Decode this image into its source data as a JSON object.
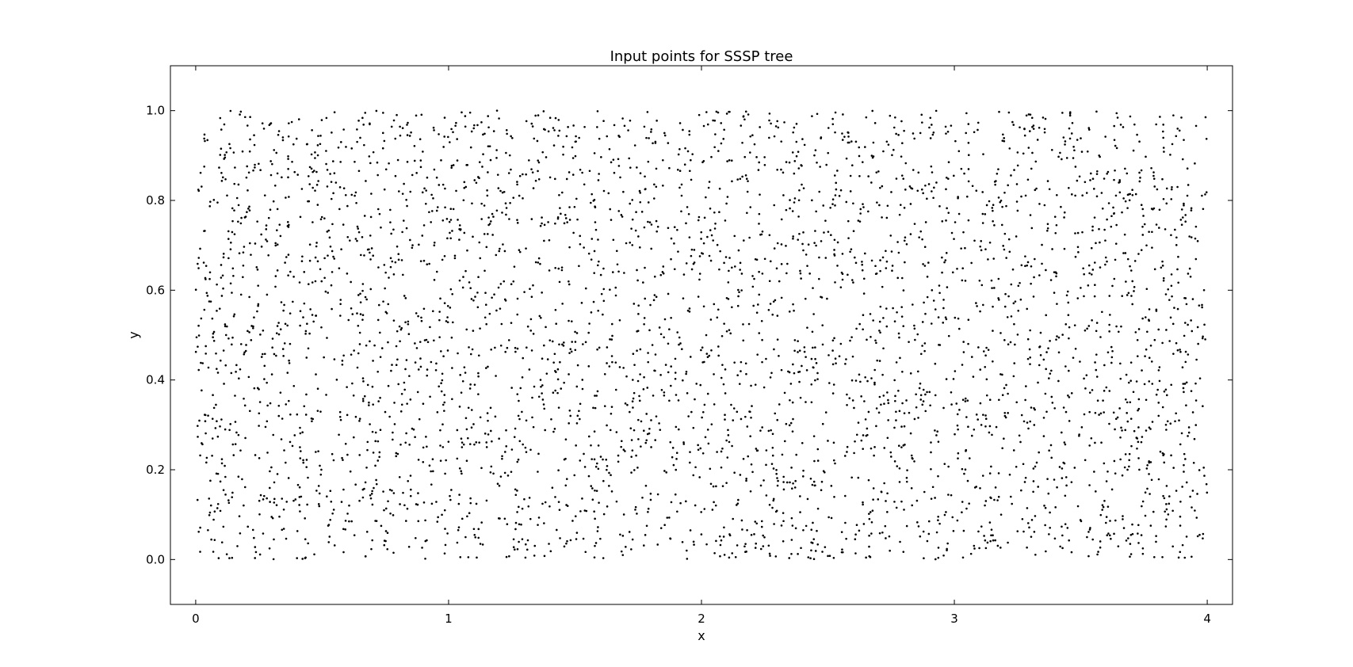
{
  "chart_data": {
    "type": "scatter",
    "title": "Input points for SSSP tree",
    "xlabel": "x",
    "ylabel": "y",
    "xlim": [
      -0.1,
      4.1
    ],
    "ylim": [
      -0.1,
      1.1
    ],
    "xticks": [
      0,
      1,
      2,
      3,
      4
    ],
    "yticks": [
      0.0,
      0.2,
      0.4,
      0.6,
      0.8,
      1.0
    ],
    "xtick_labels": [
      "0",
      "1",
      "2",
      "3",
      "4"
    ],
    "ytick_labels": [
      "0.0",
      "0.2",
      "0.4",
      "0.6",
      "0.8",
      "1.0"
    ],
    "grid": false,
    "legend": "none",
    "marker_color": "#000000",
    "x_range": [
      0,
      4
    ],
    "y_range": [
      0,
      1
    ],
    "point_count": 4000,
    "distribution": "uniform random in [0,4] x [0,1]"
  }
}
